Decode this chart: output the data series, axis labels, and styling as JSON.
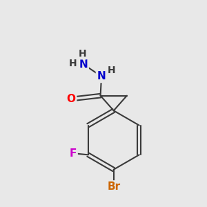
{
  "bg_color": "#e8e8e8",
  "bond_color": "#3a3a3a",
  "atom_colors": {
    "O": "#ff0000",
    "N": "#0000cc",
    "F": "#cc00cc",
    "Br": "#cc6600",
    "H": "#3a3a3a",
    "C": "#3a3a3a"
  },
  "font_size_atoms": 11,
  "font_size_H": 10,
  "font_size_Br": 11,
  "lw": 1.5
}
